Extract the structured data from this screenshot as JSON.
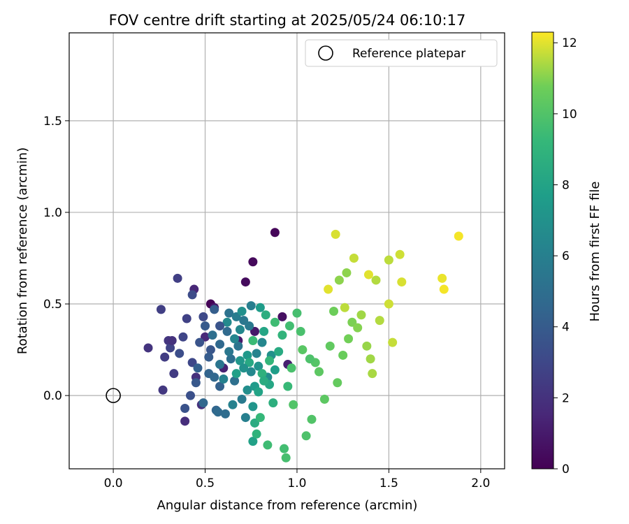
{
  "chart_data": {
    "type": "scatter",
    "title": "FOV centre drift starting at 2025/05/24 06:10:17",
    "xlabel": "Angular distance from reference (arcmin)",
    "ylabel": "Rotation from reference (arcmin)",
    "xlim": [
      -0.24,
      2.13
    ],
    "ylim": [
      -0.4,
      1.98
    ],
    "xticks": [
      0.0,
      0.5,
      1.0,
      1.5,
      2.0
    ],
    "xtick_labels": [
      "0.0",
      "0.5",
      "1.0",
      "1.5",
      "2.0"
    ],
    "yticks": [
      0.0,
      0.5,
      1.0,
      1.5
    ],
    "ytick_labels": [
      "0.0",
      "0.5",
      "1.0",
      "1.5"
    ],
    "grid": true,
    "legend": {
      "position": "top-right",
      "entries": [
        "Reference platepar"
      ]
    },
    "reference_point": {
      "x": 0.0,
      "y": 0.0,
      "label": "Reference platepar"
    },
    "colorbar": {
      "label": "Hours from first FF file",
      "range": [
        0,
        12.3
      ],
      "ticks": [
        0,
        2,
        4,
        6,
        8,
        10,
        12
      ],
      "tick_labels": [
        "0",
        "2",
        "4",
        "6",
        "8",
        "10",
        "12"
      ],
      "colormap": "viridis"
    },
    "points": [
      [
        0.53,
        0.5,
        0.1
      ],
      [
        0.88,
        0.89,
        0.2
      ],
      [
        0.76,
        0.73,
        0.3
      ],
      [
        0.72,
        0.62,
        0.4
      ],
      [
        0.92,
        0.43,
        0.6
      ],
      [
        0.55,
        0.48,
        0.8
      ],
      [
        0.77,
        0.35,
        0.9
      ],
      [
        0.68,
        0.3,
        1.0
      ],
      [
        0.95,
        0.17,
        1.2
      ],
      [
        0.6,
        0.15,
        1.3
      ],
      [
        0.44,
        0.58,
        1.5
      ],
      [
        0.5,
        0.32,
        1.6
      ],
      [
        0.39,
        -0.14,
        1.8
      ],
      [
        0.45,
        0.1,
        1.9
      ],
      [
        0.48,
        -0.05,
        2.0
      ],
      [
        0.19,
        0.26,
        2.1
      ],
      [
        0.3,
        0.3,
        2.2
      ],
      [
        0.27,
        0.03,
        2.3
      ],
      [
        0.33,
        0.12,
        2.4
      ],
      [
        0.28,
        0.21,
        2.5
      ],
      [
        0.35,
        0.64,
        2.6
      ],
      [
        0.26,
        0.47,
        2.6
      ],
      [
        0.4,
        0.42,
        2.7
      ],
      [
        0.31,
        0.26,
        2.8
      ],
      [
        0.38,
        0.32,
        2.9
      ],
      [
        0.43,
        0.18,
        3.0
      ],
      [
        0.49,
        0.43,
        3.1
      ],
      [
        0.43,
        0.55,
        3.2
      ],
      [
        0.36,
        0.23,
        3.3
      ],
      [
        0.42,
        0.0,
        3.4
      ],
      [
        0.39,
        -0.07,
        3.5
      ],
      [
        0.47,
        0.29,
        3.6
      ],
      [
        0.53,
        0.25,
        3.7
      ],
      [
        0.45,
        0.07,
        3.8
      ],
      [
        0.5,
        0.38,
        3.9
      ],
      [
        0.52,
        0.21,
        4.0
      ],
      [
        0.55,
        0.47,
        4.1
      ],
      [
        0.46,
        0.15,
        4.2
      ],
      [
        0.58,
        0.05,
        4.3
      ],
      [
        0.52,
        0.12,
        4.4
      ],
      [
        0.56,
        -0.08,
        4.5
      ],
      [
        0.49,
        -0.04,
        4.6
      ],
      [
        0.58,
        0.28,
        4.7
      ],
      [
        0.62,
        0.35,
        4.8
      ],
      [
        0.61,
        -0.1,
        4.9
      ],
      [
        0.64,
        0.2,
        5.0
      ],
      [
        0.54,
        0.33,
        5.0
      ],
      [
        0.66,
        0.08,
        5.1
      ],
      [
        0.63,
        0.45,
        5.2
      ],
      [
        0.68,
        0.27,
        5.3
      ],
      [
        0.58,
        0.17,
        5.4
      ],
      [
        0.71,
        0.41,
        5.5
      ],
      [
        0.74,
        0.38,
        5.6
      ],
      [
        0.7,
        -0.02,
        5.7
      ],
      [
        0.67,
        0.43,
        5.8
      ],
      [
        0.75,
        0.49,
        5.9
      ],
      [
        0.72,
        -0.12,
        6.0
      ],
      [
        0.6,
        0.09,
        6.1
      ],
      [
        0.78,
        0.23,
        6.2
      ],
      [
        0.66,
        0.31,
        6.3
      ],
      [
        0.81,
        0.29,
        6.4
      ],
      [
        0.75,
        0.13,
        6.5
      ],
      [
        0.62,
        0.4,
        6.6
      ],
      [
        0.84,
        0.1,
        6.7
      ],
      [
        0.73,
        0.03,
        6.8
      ],
      [
        0.7,
        0.46,
        6.9
      ],
      [
        0.86,
        0.22,
        7.0
      ],
      [
        0.79,
        0.16,
        7.1
      ],
      [
        0.76,
        -0.06,
        7.2
      ],
      [
        0.69,
        0.19,
        7.3
      ],
      [
        0.73,
        0.22,
        7.4
      ],
      [
        0.77,
        0.05,
        7.5
      ],
      [
        0.8,
        0.48,
        7.6
      ],
      [
        0.88,
        0.14,
        7.7
      ],
      [
        0.67,
        0.12,
        7.8
      ],
      [
        0.76,
        -0.25,
        7.9
      ],
      [
        0.79,
        0.02,
        8.0
      ],
      [
        0.82,
        0.35,
        8.1
      ],
      [
        0.85,
        0.06,
        8.2
      ],
      [
        0.74,
        0.18,
        8.3
      ],
      [
        0.9,
        0.24,
        8.4
      ],
      [
        0.77,
        -0.15,
        8.5
      ],
      [
        0.83,
        0.44,
        8.6
      ],
      [
        0.87,
        -0.04,
        8.7
      ],
      [
        0.81,
        0.12,
        8.8
      ],
      [
        0.78,
        -0.21,
        8.9
      ],
      [
        0.92,
        0.33,
        9.0
      ],
      [
        0.85,
        0.19,
        9.1
      ],
      [
        0.8,
        -0.12,
        9.2
      ],
      [
        0.95,
        0.05,
        9.3
      ],
      [
        0.76,
        0.3,
        9.4
      ],
      [
        0.84,
        -0.27,
        9.5
      ],
      [
        0.93,
        -0.29,
        9.6
      ],
      [
        0.94,
        -0.34,
        9.7
      ],
      [
        1.0,
        0.45,
        9.7
      ],
      [
        0.97,
        0.15,
        9.8
      ],
      [
        1.02,
        0.35,
        9.8
      ],
      [
        1.05,
        -0.22,
        9.9
      ],
      [
        0.98,
        -0.05,
        10.0
      ],
      [
        1.08,
        -0.13,
        10.0
      ],
      [
        1.1,
        0.18,
        10.1
      ],
      [
        1.03,
        0.25,
        10.2
      ],
      [
        1.12,
        0.13,
        10.3
      ],
      [
        1.15,
        -0.02,
        10.3
      ],
      [
        1.18,
        0.27,
        10.4
      ],
      [
        1.22,
        0.07,
        10.5
      ],
      [
        1.25,
        0.22,
        10.6
      ],
      [
        1.2,
        0.46,
        10.7
      ],
      [
        1.28,
        0.31,
        10.8
      ],
      [
        1.3,
        0.4,
        10.9
      ],
      [
        1.33,
        0.37,
        11.0
      ],
      [
        1.23,
        0.63,
        11.1
      ],
      [
        1.27,
        0.67,
        11.1
      ],
      [
        1.38,
        0.27,
        11.2
      ],
      [
        1.35,
        0.44,
        11.3
      ],
      [
        1.4,
        0.2,
        11.3
      ],
      [
        1.41,
        0.12,
        11.4
      ],
      [
        1.45,
        0.41,
        11.5
      ],
      [
        1.43,
        0.63,
        11.5
      ],
      [
        1.5,
        0.74,
        11.6
      ],
      [
        1.52,
        0.29,
        11.7
      ],
      [
        1.31,
        0.75,
        11.7
      ],
      [
        1.56,
        0.77,
        11.8
      ],
      [
        1.5,
        0.5,
        11.8
      ],
      [
        1.21,
        0.88,
        11.9
      ],
      [
        1.57,
        0.62,
        11.9
      ],
      [
        1.39,
        0.66,
        12.0
      ],
      [
        1.79,
        0.64,
        12.1
      ],
      [
        1.8,
        0.58,
        12.2
      ],
      [
        1.88,
        0.87,
        12.2
      ],
      [
        1.26,
        0.48,
        11.6
      ],
      [
        1.17,
        0.58,
        12.0
      ],
      [
        0.32,
        0.3,
        2.0
      ],
      [
        0.58,
        0.38,
        3.6
      ],
      [
        0.63,
        0.24,
        5.5
      ],
      [
        0.71,
        0.15,
        7.0
      ],
      [
        0.88,
        0.4,
        9.5
      ],
      [
        1.07,
        0.2,
        9.9
      ],
      [
        0.96,
        0.38,
        9.6
      ],
      [
        0.57,
        -0.09,
        4.8
      ],
      [
        0.82,
        0.08,
        8.5
      ],
      [
        0.69,
        0.36,
        6.5
      ],
      [
        0.65,
        -0.05,
        6.1
      ],
      [
        0.55,
        0.1,
        4.6
      ]
    ]
  }
}
